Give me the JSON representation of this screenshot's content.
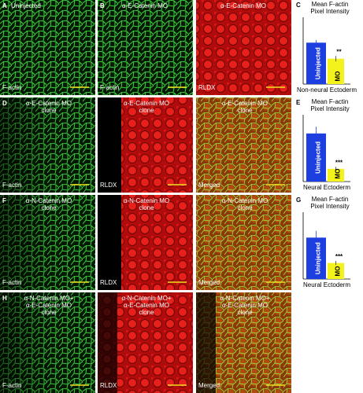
{
  "panels": [
    {
      "letter": "A",
      "labels": [
        "Uninjected"
      ],
      "stain_label": "F-actin",
      "stain": "green"
    },
    {
      "letter": "B",
      "labels": [
        "α-E-Catenin MO"
      ],
      "stain_label": "F-actin",
      "stain": "green"
    },
    {
      "labels": [
        "α-E-Catenin MO"
      ],
      "stain_label": "RLDX",
      "stain": "red"
    },
    {
      "letter": "D",
      "labels": [
        "α-E-Catenin MO",
        "clone"
      ],
      "stain_label": "F-actin",
      "stain": "green"
    },
    {
      "labels": [
        "α-E-Catenin MO",
        "clone"
      ],
      "stain_label": "RLDX",
      "stain": "red"
    },
    {
      "labels": [
        "α-E-Catenin MO",
        "clone"
      ],
      "stain_label": "Merged",
      "stain": "merged"
    },
    {
      "letter": "F",
      "labels": [
        "α-N-Catenin MO",
        "clone"
      ],
      "stain_label": "F-actin",
      "stain": "green"
    },
    {
      "labels": [
        "α-N-Catenin MO",
        "clone"
      ],
      "stain_label": "RLDX",
      "stain": "red"
    },
    {
      "labels": [
        "α-N-Catenin MO",
        "clone"
      ],
      "stain_label": "Merged",
      "stain": "merged"
    },
    {
      "letter": "H",
      "labels": [
        "α-N-Catenin MO+",
        "α-E-Catenin MO",
        "clone"
      ],
      "stain_label": "F-actin",
      "stain": "green"
    },
    {
      "labels": [
        "α-N-Catenin MO+",
        "α-E-Catenin MO",
        "clone"
      ],
      "stain_label": "RLDX",
      "stain": "red"
    },
    {
      "labels": [
        "α-N-Catenin MO+",
        "α-E-Catenin MO",
        "clone"
      ],
      "stain_label": "Merged",
      "stain": "merged"
    }
  ],
  "chart_data": [
    {
      "type": "bar",
      "letter": "C",
      "title": [
        "Mean F-actin",
        "Pixel Intensity"
      ],
      "categories": [
        "Uninjected",
        "MO"
      ],
      "values": [
        62,
        38
      ],
      "errors": [
        4,
        4
      ],
      "colors": [
        "#1e3fe0",
        "#f4f21c"
      ],
      "significance": "**",
      "xlabel": "Non-neural Ectoderm",
      "ylim": [
        0,
        100
      ]
    },
    {
      "type": "bar",
      "letter": "E",
      "title": [
        "Mean F-actin",
        "Pixel Intensity"
      ],
      "categories": [
        "Uninjected",
        "MO"
      ],
      "values": [
        72,
        19
      ],
      "errors": [
        10,
        3
      ],
      "colors": [
        "#1e3fe0",
        "#f4f21c"
      ],
      "significance": "***",
      "xlabel": "Neural Ectoderm",
      "ylim": [
        0,
        100
      ]
    },
    {
      "type": "bar",
      "letter": "G",
      "title": [
        "Mean F-actin",
        "Pixel Intensity"
      ],
      "categories": [
        "Uninjected",
        "MO"
      ],
      "values": [
        62,
        24
      ],
      "errors": [
        10,
        3
      ],
      "colors": [
        "#1e3fe0",
        "#f4f21c"
      ],
      "significance": "***",
      "xlabel": "Neural Ectoderm",
      "ylim": [
        0,
        100
      ]
    }
  ]
}
